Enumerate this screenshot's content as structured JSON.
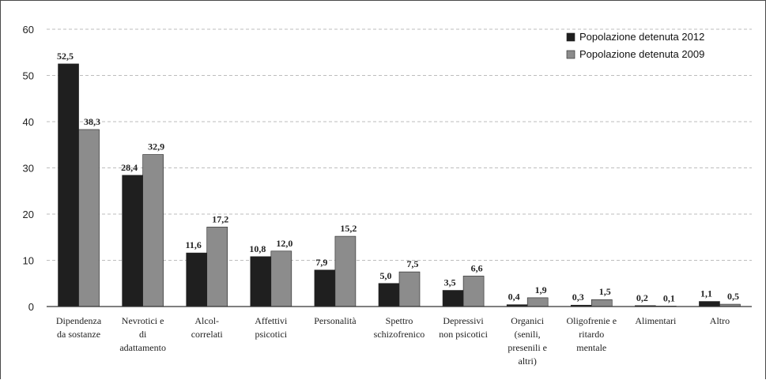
{
  "chart_data": {
    "type": "bar",
    "title": "",
    "xlabel": "",
    "ylabel": "",
    "ylim": [
      0,
      60
    ],
    "yticks": [
      "0",
      "10",
      "20",
      "30",
      "40",
      "50",
      "60"
    ],
    "grid": true,
    "legend_position": "top-right",
    "categories": [
      [
        "Dipendenza",
        "da sostanze"
      ],
      [
        "Nevrotici e",
        "di",
        "adattamento"
      ],
      [
        "Alcol-",
        "correlati"
      ],
      [
        "Affettivi",
        "psicotici"
      ],
      [
        "Personalità"
      ],
      [
        "Spettro",
        "schizofrenico"
      ],
      [
        "Depressivi",
        "non psicotici"
      ],
      [
        "Organici",
        "(senili,",
        "presenili e",
        "altri)"
      ],
      [
        "Oligofrenie e",
        "ritardo",
        "mentale"
      ],
      [
        "Alimentari"
      ],
      [
        "Altro"
      ]
    ],
    "series": [
      {
        "name": "Popolazione detenuta 2012",
        "color": "#1f1f1f",
        "values": [
          52.5,
          28.4,
          11.6,
          10.8,
          7.9,
          5.0,
          3.5,
          0.4,
          0.3,
          0.2,
          1.1
        ],
        "labels": [
          "52,5",
          "28,4",
          "11,6",
          "10,8",
          "7,9",
          "5,0",
          "3,5",
          "0,4",
          "0,3",
          "0,2",
          "1,1"
        ]
      },
      {
        "name": "Popolazione detenuta 2009",
        "color": "#8c8c8c",
        "values": [
          38.3,
          32.9,
          17.2,
          12.0,
          15.2,
          7.5,
          6.6,
          1.9,
          1.5,
          0.1,
          0.5
        ],
        "labels": [
          "38,3",
          "32,9",
          "17,2",
          "12,0",
          "15,2",
          "7,5",
          "6,6",
          "1,9",
          "1,5",
          "0,1",
          "0,5"
        ]
      }
    ]
  }
}
